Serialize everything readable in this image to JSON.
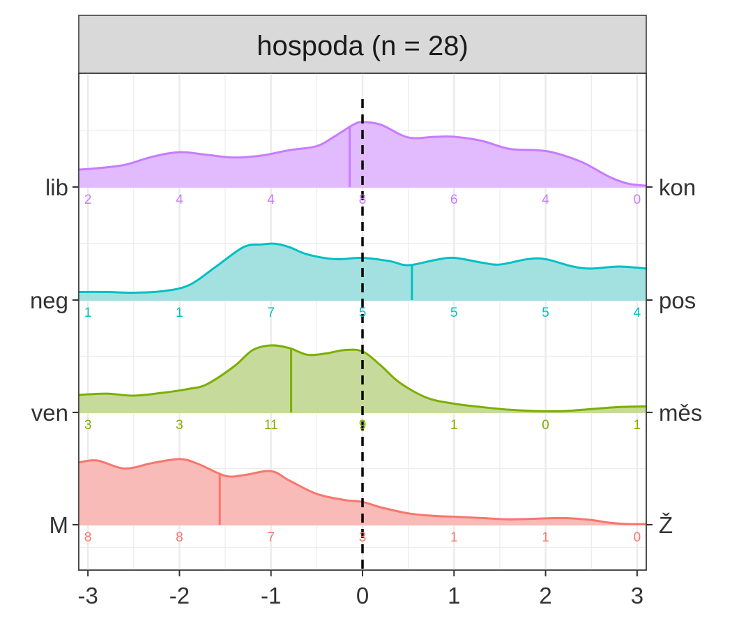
{
  "chart_data": {
    "type": "area",
    "title": "hospoda (n = 28)",
    "xlim": [
      -3.1,
      3.1
    ],
    "x_ticks": [
      -3,
      -2,
      -1,
      0,
      1,
      2,
      3
    ],
    "x_tick_labels": [
      "-3",
      "-2",
      "-1",
      "0",
      "1",
      "2",
      "3"
    ],
    "count_positions": [
      -3,
      -2,
      -1,
      0,
      1,
      2,
      3
    ],
    "reference_line_x": 0,
    "grid": true,
    "legend": "none",
    "series": [
      {
        "left_label": "lib",
        "right_label": "kon",
        "color": "#C77CFF",
        "fill": "#E2BBFF",
        "counts": [
          2,
          4,
          4,
          8,
          6,
          4,
          0
        ],
        "mean": -0.14,
        "density_x": [
          -3.1,
          -2.9,
          -2.6,
          -2.3,
          -2.0,
          -1.7,
          -1.4,
          -1.1,
          -0.8,
          -0.5,
          -0.3,
          -0.1,
          0.0,
          0.2,
          0.5,
          0.8,
          1.0,
          1.3,
          1.6,
          1.9,
          2.1,
          2.4,
          2.7,
          2.9,
          3.1
        ],
        "density_y": [
          0.26,
          0.28,
          0.33,
          0.45,
          0.52,
          0.48,
          0.44,
          0.47,
          0.55,
          0.61,
          0.76,
          0.93,
          0.97,
          0.93,
          0.74,
          0.75,
          0.75,
          0.69,
          0.57,
          0.55,
          0.51,
          0.37,
          0.15,
          0.05,
          0.02
        ]
      },
      {
        "left_label": "neg",
        "right_label": "pos",
        "color": "#00BFC4",
        "fill": "#A3E1E0",
        "counts": [
          1,
          1,
          7,
          5,
          5,
          5,
          4
        ],
        "mean": 0.54,
        "density_x": [
          -3.1,
          -2.8,
          -2.5,
          -2.2,
          -1.9,
          -1.6,
          -1.3,
          -1.1,
          -0.95,
          -0.8,
          -0.6,
          -0.3,
          0.0,
          0.3,
          0.5,
          0.8,
          1.0,
          1.3,
          1.5,
          1.8,
          2.0,
          2.3,
          2.5,
          2.8,
          3.1
        ],
        "density_y": [
          0.12,
          0.12,
          0.11,
          0.13,
          0.22,
          0.5,
          0.79,
          0.83,
          0.84,
          0.79,
          0.68,
          0.61,
          0.63,
          0.58,
          0.52,
          0.6,
          0.63,
          0.56,
          0.53,
          0.61,
          0.61,
          0.5,
          0.47,
          0.5,
          0.47
        ]
      },
      {
        "left_label": "ven",
        "right_label": "měs",
        "color": "#7CAE00",
        "fill": "#C6DB9B",
        "counts": [
          3,
          3,
          11,
          9,
          1,
          0,
          1
        ],
        "mean": -0.78,
        "density_x": [
          -3.1,
          -2.8,
          -2.5,
          -2.2,
          -1.9,
          -1.7,
          -1.4,
          -1.2,
          -1.0,
          -0.8,
          -0.6,
          -0.4,
          -0.2,
          0.0,
          0.2,
          0.4,
          0.7,
          1.0,
          1.3,
          1.6,
          1.9,
          2.2,
          2.5,
          2.8,
          3.1
        ],
        "density_y": [
          0.26,
          0.28,
          0.25,
          0.29,
          0.35,
          0.42,
          0.69,
          0.93,
          1.0,
          0.96,
          0.86,
          0.88,
          0.93,
          0.91,
          0.7,
          0.45,
          0.22,
          0.13,
          0.08,
          0.04,
          0.02,
          0.02,
          0.05,
          0.08,
          0.09
        ]
      },
      {
        "left_label": "M",
        "right_label": "Ž",
        "color": "#F8766D",
        "fill": "#F9BBB8",
        "counts": [
          8,
          8,
          7,
          3,
          1,
          1,
          0
        ],
        "mean": -1.56,
        "density_x": [
          -3.1,
          -2.9,
          -2.6,
          -2.3,
          -2.0,
          -1.8,
          -1.5,
          -1.3,
          -1.0,
          -0.8,
          -0.5,
          -0.2,
          0.0,
          0.2,
          0.5,
          0.8,
          1.0,
          1.3,
          1.6,
          1.9,
          2.2,
          2.5,
          2.7,
          2.9,
          3.1
        ],
        "density_y": [
          0.93,
          0.96,
          0.84,
          0.92,
          0.98,
          0.91,
          0.73,
          0.74,
          0.8,
          0.66,
          0.46,
          0.37,
          0.34,
          0.26,
          0.17,
          0.13,
          0.12,
          0.1,
          0.08,
          0.09,
          0.1,
          0.07,
          0.03,
          0.01,
          0.01
        ]
      }
    ]
  }
}
